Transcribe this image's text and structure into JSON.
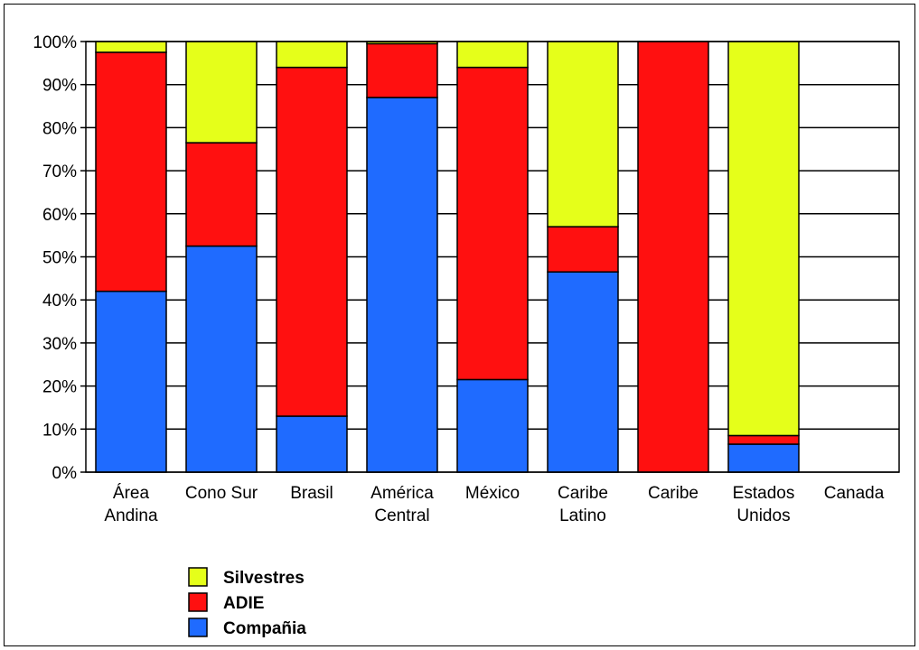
{
  "chart_data": {
    "type": "bar",
    "stacked": true,
    "percent": true,
    "categories": [
      [
        "Área",
        "Andina"
      ],
      [
        "Cono Sur"
      ],
      [
        "Brasil"
      ],
      [
        "América",
        "Central"
      ],
      [
        "México"
      ],
      [
        "Caribe",
        "Latino"
      ],
      [
        "Caribe"
      ],
      [
        "Estados",
        "Unidos"
      ],
      [
        "Canada"
      ]
    ],
    "series": [
      {
        "name": "Compañia",
        "color": "#1f6bff",
        "values": [
          42,
          52.5,
          13,
          87,
          21.5,
          46.5,
          0,
          6.5,
          0
        ]
      },
      {
        "name": "ADIE",
        "color": "#ff1010",
        "values": [
          55.5,
          24,
          81,
          12.5,
          72.5,
          10.5,
          100,
          2,
          0
        ]
      },
      {
        "name": "Silvestres",
        "color": "#e5ff1a",
        "values": [
          2.5,
          23.5,
          6,
          0.5,
          6,
          43,
          0,
          91.5,
          0
        ]
      }
    ],
    "y_ticks": [
      "0%",
      "10%",
      "20%",
      "30%",
      "40%",
      "50%",
      "60%",
      "70%",
      "80%",
      "90%",
      "100%"
    ],
    "ylim": [
      0,
      100
    ],
    "grid": true,
    "legend_position": "bottom-left",
    "legend_order": [
      "Silvestres",
      "ADIE",
      "Compañia"
    ],
    "title": "",
    "xlabel": "",
    "ylabel": ""
  }
}
